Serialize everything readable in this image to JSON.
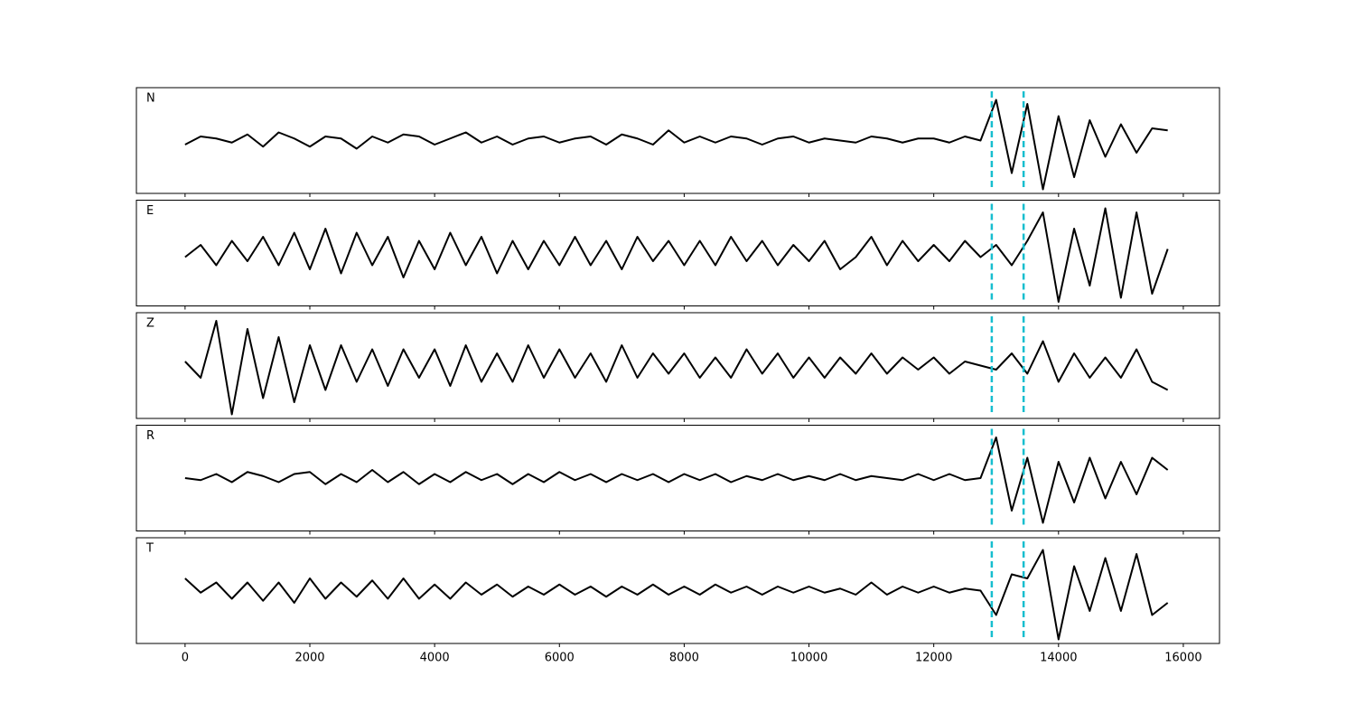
{
  "chart_data": [
    {
      "type": "line",
      "label": "N",
      "color": "#000000",
      "vlines": [
        12930,
        13440
      ],
      "vline_color": "#17becf",
      "xlim": [
        -780,
        16580
      ],
      "ylim": [
        -1.3,
        1.3
      ],
      "x": [
        0,
        250,
        500,
        750,
        1000,
        1250,
        1500,
        1750,
        2000,
        2250,
        2500,
        2750,
        3000,
        3250,
        3500,
        3750,
        4000,
        4250,
        4500,
        4750,
        5000,
        5250,
        5500,
        5750,
        6000,
        6250,
        6500,
        6750,
        7000,
        7250,
        7500,
        7750,
        8000,
        8250,
        8500,
        8750,
        9000,
        9250,
        9500,
        9750,
        10000,
        10250,
        10500,
        10750,
        11000,
        11250,
        11500,
        11750,
        12000,
        12250,
        12500,
        12750,
        13000,
        13250,
        13500,
        13750,
        14000,
        14250,
        14500,
        14750,
        15000,
        15250,
        15500,
        15750
      ],
      "values": [
        -0.1,
        0.1,
        0.05,
        -0.05,
        0.15,
        -0.15,
        0.2,
        0.05,
        -0.15,
        0.1,
        0.05,
        -0.2,
        0.1,
        -0.05,
        0.15,
        0.1,
        -0.1,
        0.05,
        0.2,
        -0.05,
        0.1,
        -0.1,
        0.05,
        0.1,
        -0.05,
        0.05,
        0.1,
        -0.1,
        0.15,
        0.05,
        -0.1,
        0.25,
        -0.05,
        0.1,
        -0.05,
        0.1,
        0.05,
        -0.1,
        0.05,
        0.1,
        -0.05,
        0.05,
        0,
        -0.05,
        0.1,
        0.05,
        -0.05,
        0.05,
        0.05,
        -0.05,
        0.1,
        0,
        1.0,
        -0.8,
        0.9,
        -1.2,
        0.6,
        -0.9,
        0.5,
        -0.4,
        0.4,
        -0.3,
        0.3,
        0.25
      ]
    },
    {
      "type": "line",
      "label": "E",
      "color": "#000000",
      "vlines": [
        12930,
        13440
      ],
      "vline_color": "#17becf",
      "xlim": [
        -780,
        16580
      ],
      "ylim": [
        -1.3,
        1.3
      ],
      "x": [
        0,
        250,
        500,
        750,
        1000,
        1250,
        1500,
        1750,
        2000,
        2250,
        2500,
        2750,
        3000,
        3250,
        3500,
        3750,
        4000,
        4250,
        4500,
        4750,
        5000,
        5250,
        5500,
        5750,
        6000,
        6250,
        6500,
        6750,
        7000,
        7250,
        7500,
        7750,
        8000,
        8250,
        8500,
        8750,
        9000,
        9250,
        9500,
        9750,
        10000,
        10250,
        10500,
        10750,
        11000,
        11250,
        11500,
        11750,
        12000,
        12250,
        12500,
        12750,
        13000,
        13250,
        13500,
        13750,
        14000,
        14250,
        14500,
        14750,
        15000,
        15250,
        15500,
        15750
      ],
      "values": [
        -0.1,
        0.2,
        -0.3,
        0.3,
        -0.2,
        0.4,
        -0.3,
        0.5,
        -0.4,
        0.6,
        -0.5,
        0.5,
        -0.3,
        0.4,
        -0.6,
        0.3,
        -0.4,
        0.5,
        -0.3,
        0.4,
        -0.5,
        0.3,
        -0.4,
        0.3,
        -0.3,
        0.4,
        -0.3,
        0.3,
        -0.4,
        0.4,
        -0.2,
        0.3,
        -0.3,
        0.3,
        -0.3,
        0.4,
        -0.2,
        0.3,
        -0.3,
        0.2,
        -0.2,
        0.3,
        -0.4,
        -0.1,
        0.4,
        -0.3,
        0.3,
        -0.2,
        0.2,
        -0.2,
        0.3,
        -0.1,
        0.2,
        -0.3,
        0.3,
        1.0,
        -1.2,
        0.6,
        -0.8,
        1.1,
        -1.1,
        1.0,
        -1.0,
        0.1
      ]
    },
    {
      "type": "line",
      "label": "Z",
      "color": "#000000",
      "vlines": [
        12930,
        13440
      ],
      "vline_color": "#17becf",
      "xlim": [
        -780,
        16580
      ],
      "ylim": [
        -1.3,
        1.3
      ],
      "x": [
        0,
        250,
        500,
        750,
        1000,
        1250,
        1500,
        1750,
        2000,
        2250,
        2500,
        2750,
        3000,
        3250,
        3500,
        3750,
        4000,
        4250,
        4500,
        4750,
        5000,
        5250,
        5500,
        5750,
        6000,
        6250,
        6500,
        6750,
        7000,
        7250,
        7500,
        7750,
        8000,
        8250,
        8500,
        8750,
        9000,
        9250,
        9500,
        9750,
        10000,
        10250,
        10500,
        10750,
        11000,
        11250,
        11500,
        11750,
        12000,
        12250,
        12500,
        12750,
        13000,
        13250,
        13500,
        13750,
        14000,
        14250,
        14500,
        14750,
        15000,
        15250,
        15500,
        15750
      ],
      "values": [
        0.1,
        -0.3,
        1.1,
        -1.2,
        0.9,
        -0.8,
        0.7,
        -0.9,
        0.5,
        -0.6,
        0.5,
        -0.4,
        0.4,
        -0.5,
        0.4,
        -0.3,
        0.4,
        -0.5,
        0.5,
        -0.4,
        0.3,
        -0.4,
        0.5,
        -0.3,
        0.4,
        -0.3,
        0.3,
        -0.4,
        0.5,
        -0.3,
        0.3,
        -0.2,
        0.3,
        -0.3,
        0.2,
        -0.3,
        0.4,
        -0.2,
        0.3,
        -0.3,
        0.2,
        -0.3,
        0.2,
        -0.2,
        0.3,
        -0.2,
        0.2,
        -0.1,
        0.2,
        -0.2,
        0.1,
        0,
        -0.1,
        0.3,
        -0.2,
        0.6,
        -0.4,
        0.3,
        -0.3,
        0.2,
        -0.3,
        0.4,
        -0.4,
        -0.6
      ]
    },
    {
      "type": "line",
      "label": "R",
      "color": "#000000",
      "vlines": [
        12930,
        13440
      ],
      "vline_color": "#17becf",
      "xlim": [
        -780,
        16580
      ],
      "ylim": [
        -1.3,
        1.3
      ],
      "x": [
        0,
        250,
        500,
        750,
        1000,
        1250,
        1500,
        1750,
        2000,
        2250,
        2500,
        2750,
        3000,
        3250,
        3500,
        3750,
        4000,
        4250,
        4500,
        4750,
        5000,
        5250,
        5500,
        5750,
        6000,
        6250,
        6500,
        6750,
        7000,
        7250,
        7500,
        7750,
        8000,
        8250,
        8500,
        8750,
        9000,
        9250,
        9500,
        9750,
        10000,
        10250,
        10500,
        10750,
        11000,
        11250,
        11500,
        11750,
        12000,
        12250,
        12500,
        12750,
        13000,
        13250,
        13500,
        13750,
        14000,
        14250,
        14500,
        14750,
        15000,
        15250,
        15500,
        15750
      ],
      "values": [
        0,
        -0.05,
        0.1,
        -0.1,
        0.15,
        0.05,
        -0.1,
        0.1,
        0.15,
        -0.15,
        0.1,
        -0.1,
        0.2,
        -0.1,
        0.15,
        -0.15,
        0.1,
        -0.1,
        0.15,
        -0.05,
        0.1,
        -0.15,
        0.1,
        -0.1,
        0.15,
        -0.05,
        0.1,
        -0.1,
        0.1,
        -0.05,
        0.1,
        -0.1,
        0.1,
        -0.05,
        0.1,
        -0.1,
        0.05,
        -0.05,
        0.1,
        -0.05,
        0.05,
        -0.05,
        0.1,
        -0.05,
        0.05,
        0,
        -0.05,
        0.1,
        -0.05,
        0.1,
        -0.05,
        0,
        1.0,
        -0.8,
        0.5,
        -1.1,
        0.4,
        -0.6,
        0.5,
        -0.5,
        0.4,
        -0.4,
        0.5,
        0.2
      ]
    },
    {
      "type": "line",
      "label": "T",
      "color": "#000000",
      "vlines": [
        12930,
        13440
      ],
      "vline_color": "#17becf",
      "xlim": [
        -780,
        16580
      ],
      "ylim": [
        -1.3,
        1.3
      ],
      "xticks": [
        0,
        2000,
        4000,
        6000,
        8000,
        10000,
        12000,
        14000,
        16000
      ],
      "x": [
        0,
        250,
        500,
        750,
        1000,
        1250,
        1500,
        1750,
        2000,
        2250,
        2500,
        2750,
        3000,
        3250,
        3500,
        3750,
        4000,
        4250,
        4500,
        4750,
        5000,
        5250,
        5500,
        5750,
        6000,
        6250,
        6500,
        6750,
        7000,
        7250,
        7500,
        7750,
        8000,
        8250,
        8500,
        8750,
        9000,
        9250,
        9500,
        9750,
        10000,
        10250,
        10500,
        10750,
        11000,
        11250,
        11500,
        11750,
        12000,
        12250,
        12500,
        12750,
        13000,
        13250,
        13500,
        13750,
        14000,
        14250,
        14500,
        14750,
        15000,
        15250,
        15500,
        15750
      ],
      "values": [
        0.3,
        -0.05,
        0.2,
        -0.2,
        0.2,
        -0.25,
        0.2,
        -0.3,
        0.3,
        -0.2,
        0.2,
        -0.15,
        0.25,
        -0.2,
        0.3,
        -0.2,
        0.15,
        -0.2,
        0.2,
        -0.1,
        0.15,
        -0.15,
        0.1,
        -0.1,
        0.15,
        -0.1,
        0.1,
        -0.15,
        0.1,
        -0.1,
        0.15,
        -0.1,
        0.1,
        -0.1,
        0.15,
        -0.05,
        0.1,
        -0.1,
        0.1,
        -0.05,
        0.1,
        -0.05,
        0.05,
        -0.1,
        0.2,
        -0.1,
        0.1,
        -0.05,
        0.1,
        -0.05,
        0.05,
        0,
        -0.6,
        0.4,
        0.3,
        1.0,
        -1.2,
        0.6,
        -0.5,
        0.8,
        -0.5,
        0.9,
        -0.6,
        -0.3
      ]
    }
  ]
}
